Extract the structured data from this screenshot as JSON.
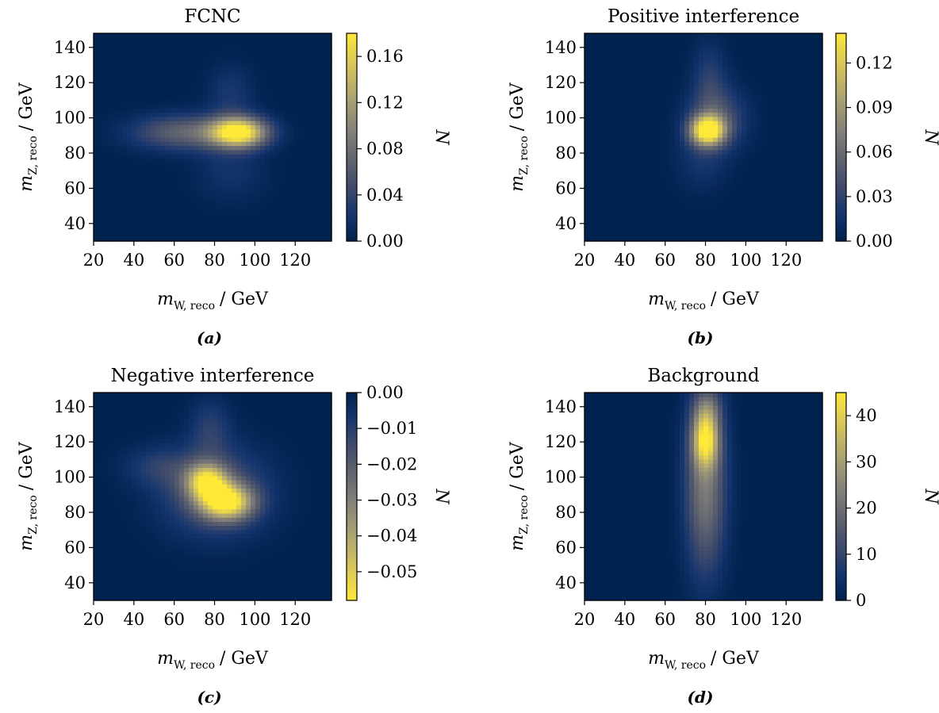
{
  "chart_data": [
    {
      "type": "heatmap",
      "title": "FCNC",
      "caption": "(a)",
      "xlabel": {
        "main": "m",
        "sub": "W, reco",
        "unit": "/ GeV"
      },
      "ylabel": {
        "main": "m",
        "sub": "Z, reco",
        "unit": "/ GeV"
      },
      "xlim": [
        20,
        138
      ],
      "ylim": [
        30,
        148
      ],
      "xticks": [
        "20",
        "40",
        "60",
        "80",
        "100",
        "120"
      ],
      "yticks": [
        "40",
        "60",
        "80",
        "100",
        "120",
        "140"
      ],
      "colorbar": {
        "label": "N",
        "range": [
          0,
          0.18
        ],
        "ticks": [
          "0.00",
          "0.04",
          "0.08",
          "0.12",
          "0.16"
        ]
      },
      "features": [
        {
          "x": 92,
          "y": 92,
          "sx": 10,
          "sy": 6,
          "amp": 0.18
        },
        {
          "x": 65,
          "y": 92,
          "sx": 18,
          "sy": 7,
          "amp": 0.07
        },
        {
          "x": 88,
          "y": 113,
          "sx": 8,
          "sy": 12,
          "amp": 0.025
        },
        {
          "x": 88,
          "y": 70,
          "sx": 12,
          "sy": 12,
          "amp": 0.02
        }
      ]
    },
    {
      "type": "heatmap",
      "title": "Positive interference",
      "caption": "(b)",
      "xlabel": {
        "main": "m",
        "sub": "W, reco",
        "unit": "/ GeV"
      },
      "ylabel": {
        "main": "m",
        "sub": "Z, reco",
        "unit": "/ GeV"
      },
      "xlim": [
        20,
        138
      ],
      "ylim": [
        30,
        148
      ],
      "xticks": [
        "20",
        "40",
        "60",
        "80",
        "100",
        "120"
      ],
      "yticks": [
        "40",
        "60",
        "80",
        "100",
        "120",
        "140"
      ],
      "colorbar": {
        "label": "N",
        "range": [
          0,
          0.14
        ],
        "ticks": [
          "0.00",
          "0.03",
          "0.06",
          "0.09",
          "0.12"
        ]
      },
      "features": [
        {
          "x": 81,
          "y": 93,
          "sx": 6,
          "sy": 6,
          "amp": 0.14
        },
        {
          "x": 86,
          "y": 100,
          "sx": 10,
          "sy": 12,
          "amp": 0.04
        },
        {
          "x": 82,
          "y": 122,
          "sx": 6,
          "sy": 15,
          "amp": 0.025
        },
        {
          "x": 78,
          "y": 75,
          "sx": 9,
          "sy": 12,
          "amp": 0.015
        }
      ]
    },
    {
      "type": "heatmap",
      "title": "Negative interference",
      "caption": "(c)",
      "xlabel": {
        "main": "m",
        "sub": "W, reco",
        "unit": "/ GeV"
      },
      "ylabel": {
        "main": "m",
        "sub": "Z, reco",
        "unit": "/ GeV"
      },
      "xlim": [
        20,
        138
      ],
      "ylim": [
        30,
        148
      ],
      "xticks": [
        "20",
        "40",
        "60",
        "80",
        "100",
        "120"
      ],
      "yticks": [
        "40",
        "60",
        "80",
        "100",
        "120",
        "140"
      ],
      "colorbar": {
        "label": "N",
        "range": [
          -0.058,
          0
        ],
        "inverted": true,
        "ticks": [
          "0.00",
          "−0.01",
          "−0.02",
          "−0.03",
          "−0.04",
          "−0.05"
        ]
      },
      "features": [
        {
          "x": 86,
          "y": 86,
          "sx": 9,
          "sy": 7,
          "amp": -0.05
        },
        {
          "x": 76,
          "y": 98,
          "sx": 7,
          "sy": 7,
          "amp": -0.042
        },
        {
          "x": 80,
          "y": 92,
          "sx": 18,
          "sy": 17,
          "amp": -0.02
        },
        {
          "x": 78,
          "y": 128,
          "sx": 7,
          "sy": 12,
          "amp": -0.01
        },
        {
          "x": 52,
          "y": 106,
          "sx": 12,
          "sy": 8,
          "amp": -0.009
        }
      ]
    },
    {
      "type": "heatmap",
      "title": "Background",
      "caption": "(d)",
      "xlabel": {
        "main": "m",
        "sub": "W, reco",
        "unit": "/ GeV"
      },
      "ylabel": {
        "main": "m",
        "sub": "Z, reco",
        "unit": "/ GeV"
      },
      "xlim": [
        20,
        138
      ],
      "ylim": [
        30,
        148
      ],
      "xticks": [
        "20",
        "40",
        "60",
        "80",
        "100",
        "120"
      ],
      "yticks": [
        "40",
        "60",
        "80",
        "100",
        "120",
        "140"
      ],
      "colorbar": {
        "label": "N",
        "range": [
          0,
          45
        ],
        "ticks": [
          "0",
          "10",
          "20",
          "30",
          "40"
        ]
      },
      "features": [
        {
          "x": 80,
          "y": 122,
          "sx": 4.5,
          "sy": 11,
          "amp": 33
        },
        {
          "x": 80,
          "y": 95,
          "sx": 7,
          "sy": 34,
          "amp": 22
        },
        {
          "x": 81,
          "y": 140,
          "sx": 5,
          "sy": 8,
          "amp": 10
        }
      ]
    }
  ]
}
